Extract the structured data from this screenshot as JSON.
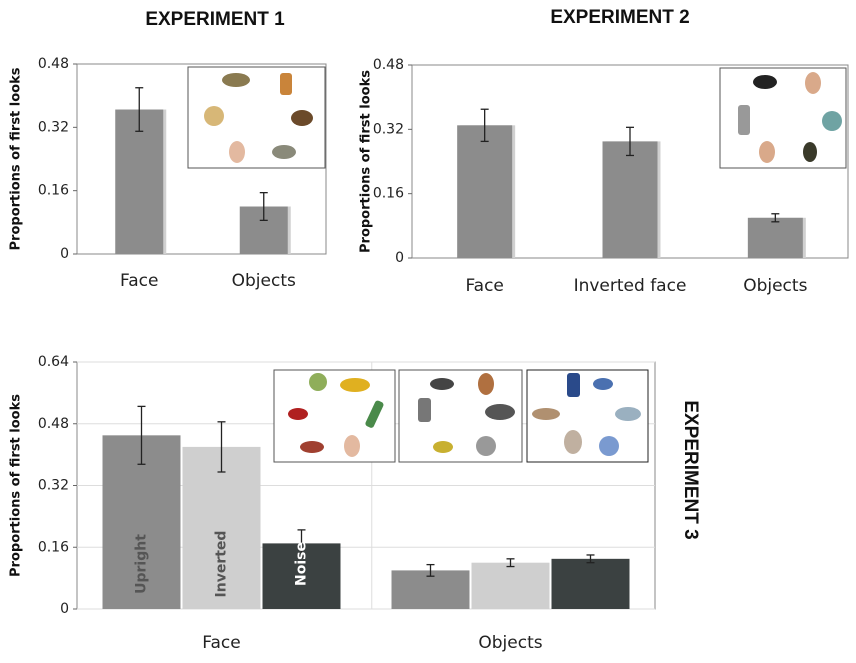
{
  "chart_data": [
    {
      "type": "bar",
      "title": "EXPERIMENT 1",
      "y_label": "Proportions of first looks",
      "categories": [
        "Face",
        "Objects"
      ],
      "values": [
        0.365,
        0.12
      ],
      "errors": [
        0.055,
        0.035
      ],
      "color": "#8c8c8c",
      "ylim": [
        0,
        0.48
      ],
      "yticks": [
        0,
        0.16,
        0.32,
        0.48
      ],
      "grid": false
    },
    {
      "type": "bar",
      "title": "EXPERIMENT 2",
      "y_label": "Proportions of first looks",
      "categories": [
        "Face",
        "Inverted face",
        "Objects"
      ],
      "values": [
        0.33,
        0.29,
        0.1
      ],
      "errors": [
        0.04,
        0.035,
        0.01
      ],
      "color": "#8c8c8c",
      "ylim": [
        0,
        0.48
      ],
      "yticks": [
        0,
        0.16,
        0.32,
        0.48
      ],
      "grid": false
    },
    {
      "type": "grouped-bar",
      "title": "EXPERIMENT 3",
      "y_label": "Proportions of first looks",
      "categories": [
        "Face",
        "Objects"
      ],
      "series": [
        {
          "name": "Upright",
          "color": "#8c8c8c",
          "values": [
            0.45,
            0.1
          ],
          "errors": [
            0.075,
            0.015
          ]
        },
        {
          "name": "Inverted",
          "color": "#cfcfcf",
          "values": [
            0.42,
            0.12
          ],
          "errors": [
            0.065,
            0.01
          ]
        },
        {
          "name": "Noise",
          "color": "#3b4141",
          "values": [
            0.17,
            0.13
          ],
          "errors": [
            0.035,
            0.01
          ]
        }
      ],
      "ylim": [
        0,
        0.64
      ],
      "yticks": [
        0,
        0.16,
        0.32,
        0.48,
        0.64
      ],
      "grid": true
    }
  ]
}
